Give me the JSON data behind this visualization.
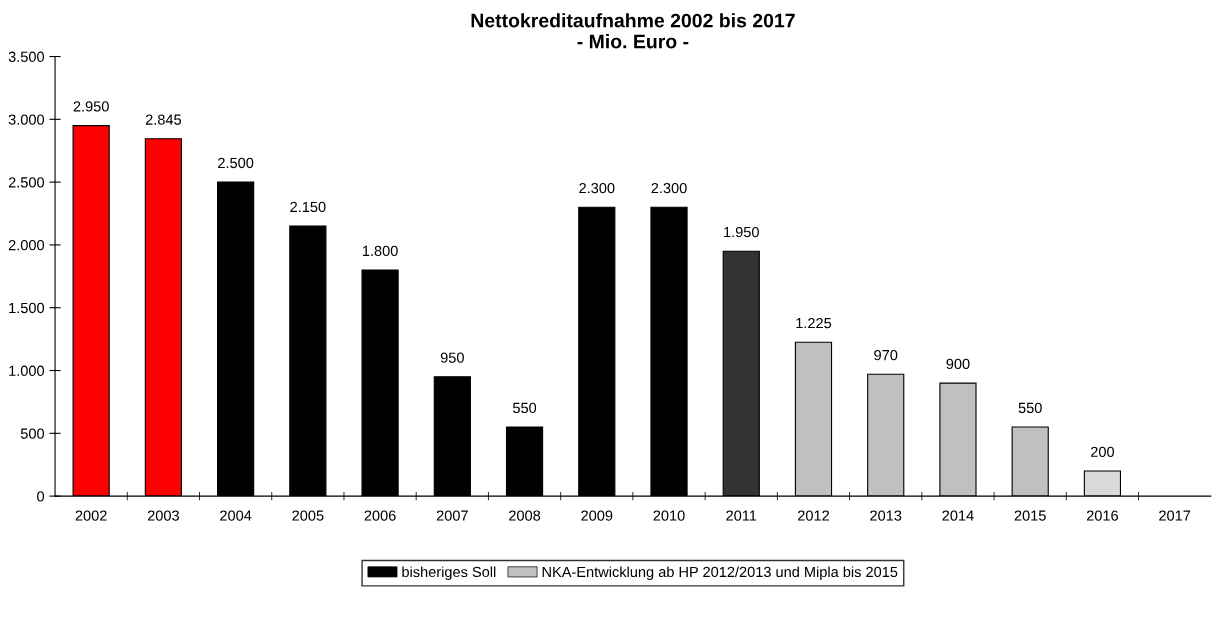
{
  "chart_data": {
    "type": "bar",
    "title": "Nettokreditaufnahme 2002 bis 2017",
    "subtitle": "- Mio. Euro -",
    "categories": [
      "2002",
      "2003",
      "2004",
      "2005",
      "2006",
      "2007",
      "2008",
      "2009",
      "2010",
      "2011",
      "2012",
      "2013",
      "2014",
      "2015",
      "2016",
      "2017"
    ],
    "series": [
      {
        "color": "#ff0000",
        "values": [
          2950,
          2845,
          null,
          null,
          null,
          null,
          null,
          null,
          null,
          null,
          null,
          null,
          null,
          null,
          null,
          null
        ],
        "value_labels": [
          "2.950",
          "2.845",
          null,
          null,
          null,
          null,
          null,
          null,
          null,
          null,
          null,
          null,
          null,
          null,
          null,
          null
        ]
      },
      {
        "name": "bisheriges Soll",
        "color": "#000000",
        "values": [
          null,
          null,
          2500,
          2150,
          1800,
          950,
          550,
          2300,
          2300,
          null,
          null,
          null,
          null,
          null,
          null,
          null
        ],
        "value_labels": [
          null,
          null,
          "2.500",
          "2.150",
          "1.800",
          "950",
          "550",
          "2.300",
          "2.300",
          null,
          null,
          null,
          null,
          null,
          null,
          null
        ]
      },
      {
        "color": "#333333",
        "values": [
          null,
          null,
          null,
          null,
          null,
          null,
          null,
          null,
          null,
          1950,
          null,
          null,
          null,
          null,
          null,
          null
        ],
        "value_labels": [
          null,
          null,
          null,
          null,
          null,
          null,
          null,
          null,
          null,
          "1.950",
          null,
          null,
          null,
          null,
          null,
          null
        ]
      },
      {
        "name": "NKA-Entwicklung ab HP 2012/2013 und Mipla bis 2015",
        "color": "#c0c0c0",
        "values": [
          null,
          null,
          null,
          null,
          null,
          null,
          null,
          null,
          null,
          null,
          1225,
          970,
          900,
          550,
          null,
          null
        ],
        "value_labels": [
          null,
          null,
          null,
          null,
          null,
          null,
          null,
          null,
          null,
          null,
          "1.225",
          "970",
          "900",
          "550",
          null,
          null
        ]
      },
      {
        "color": "#d9d9d9",
        "values": [
          null,
          null,
          null,
          null,
          null,
          null,
          null,
          null,
          null,
          null,
          null,
          null,
          null,
          null,
          200,
          null
        ],
        "value_labels": [
          null,
          null,
          null,
          null,
          null,
          null,
          null,
          null,
          null,
          null,
          null,
          null,
          null,
          null,
          "200",
          null
        ]
      }
    ],
    "ylim": [
      0,
      3500
    ],
    "yticks": [
      0,
      {
        "value": 500,
        "label": "500"
      },
      {
        "value": 1000,
        "label": "1.000"
      },
      {
        "value": 1500,
        "label": "1.500"
      },
      {
        "value": 2000,
        "label": "2.000"
      },
      {
        "value": 2500,
        "label": "2.500"
      },
      {
        "value": 3000,
        "label": "3.000"
      },
      {
        "value": 3500,
        "label": "3.500"
      }
    ],
    "grid": false,
    "legend": "bottom"
  }
}
